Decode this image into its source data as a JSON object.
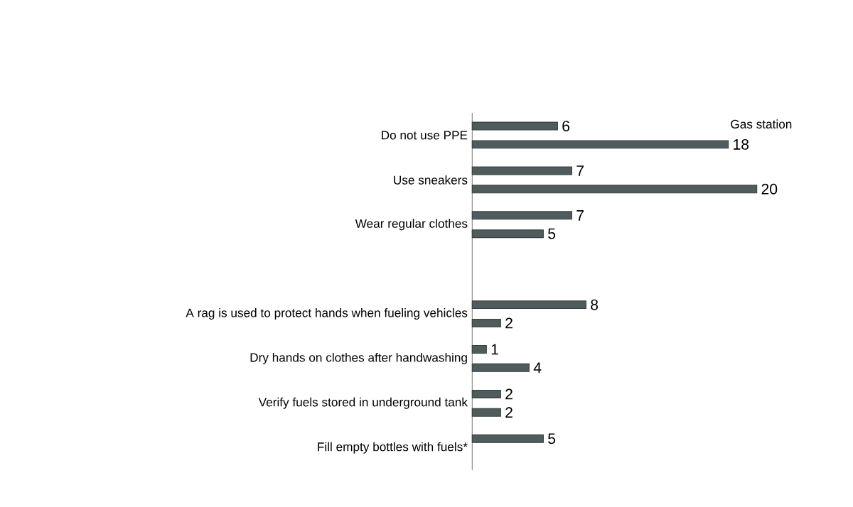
{
  "chart_data": {
    "type": "bar",
    "orientation": "horizontal",
    "categories": [
      "Do not use PPE",
      "Use sneakers",
      "Wear regular clothes",
      null,
      "A rag is used to protect hands when fueling vehicles",
      "Dry hands on clothes after handwashing",
      "Verify fuels stored in underground tank",
      "Fill empty bottles with fuels*"
    ],
    "series": [
      {
        "color": "#4f5b5c",
        "values": [
          6,
          7,
          7,
          null,
          8,
          1,
          2,
          5
        ]
      },
      {
        "color": "#4f5b5c",
        "values": [
          18,
          20,
          5,
          null,
          2,
          4,
          2,
          null
        ]
      }
    ],
    "tick_labels": "y",
    "data_labels": true,
    "annotations": [
      "Gas station"
    ]
  }
}
